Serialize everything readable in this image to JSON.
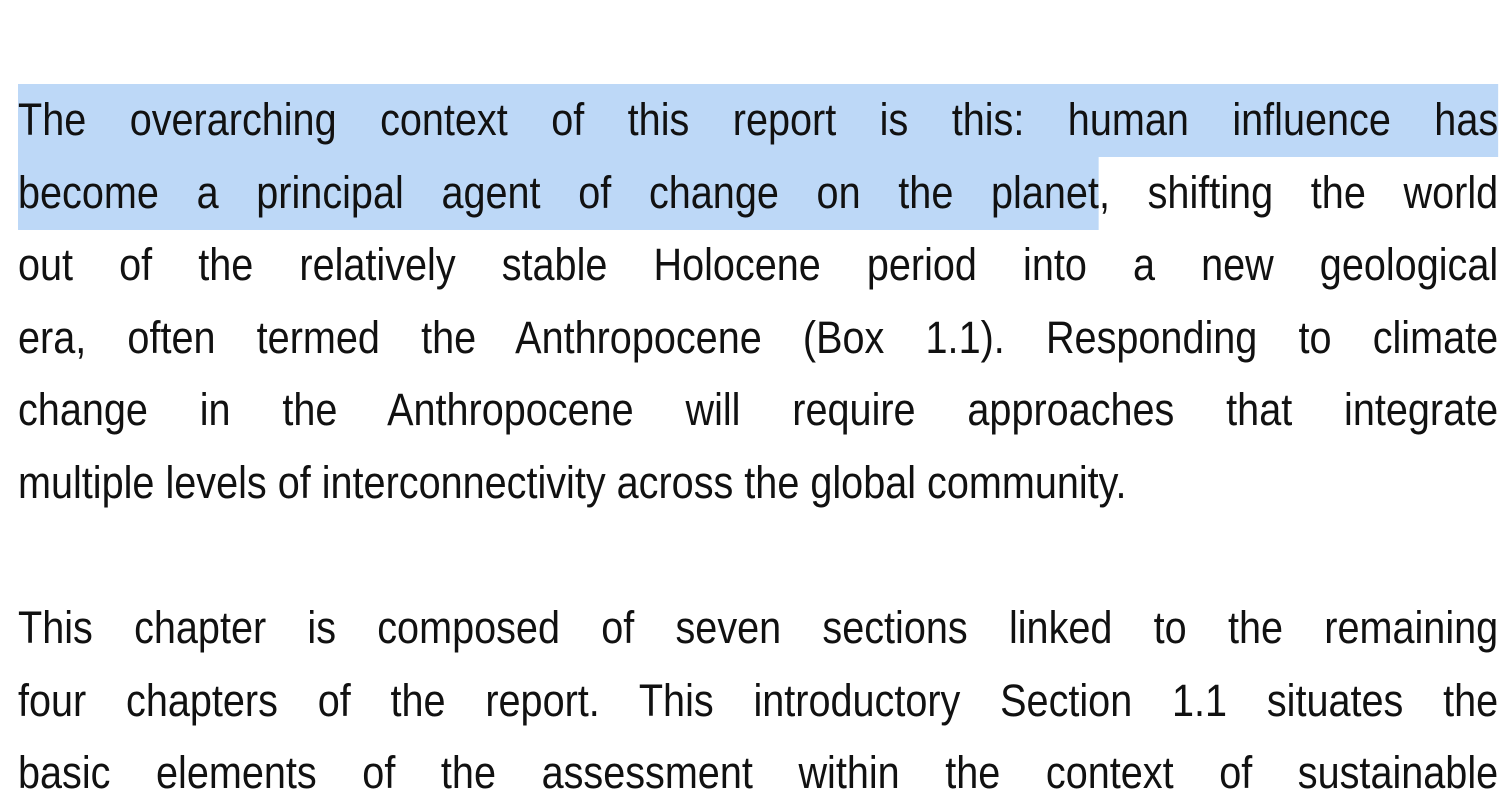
{
  "paragraphs": [
    {
      "lines": [
        {
          "highlighted": "The overarching context of this report is this: human influence has"
        },
        {
          "highlighted": "become a principal agent of change on the planet",
          "text": ", shifting the world"
        },
        {
          "text": "out of the relatively stable Holocene period into a new geological"
        },
        {
          "text": "era, often termed the Anthropocene (Box 1.1). Responding to climate"
        },
        {
          "text": "change in the Anthropocene will require approaches that integrate"
        },
        {
          "text": "multiple levels of interconnectivity across the global community."
        }
      ]
    },
    {
      "lines": [
        {
          "text": "This chapter is composed of seven sections linked to the remaining"
        },
        {
          "text": "four chapters of the report. This introductory Section 1.1 situates the"
        },
        {
          "text": "basic elements of the assessment within the context of sustainable"
        }
      ]
    }
  ]
}
